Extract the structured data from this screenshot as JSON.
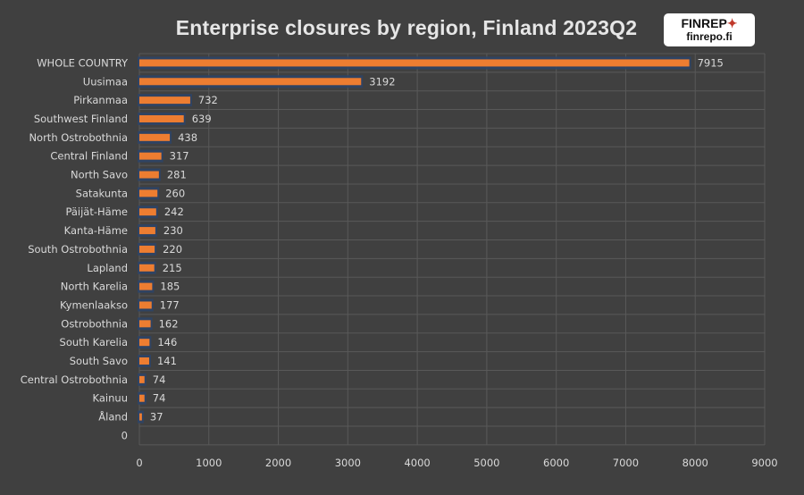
{
  "chart_data": {
    "type": "bar",
    "orientation": "horizontal",
    "title": "Enterprise closures by region, Finland 2023Q2",
    "categories": [
      "WHOLE COUNTRY",
      "Uusimaa",
      "Pirkanmaa",
      "Southwest Finland",
      "North Ostrobothnia",
      "Central Finland",
      "North Savo",
      "Satakunta",
      "Päijät-Häme",
      "Kanta-Häme",
      "South Ostrobothnia",
      "Lapland",
      "North Karelia",
      "Kymenlaakso",
      "Ostrobothnia",
      "South Karelia",
      "South Savo",
      "Central Ostrobothnia",
      "Kainuu",
      "Åland",
      "0"
    ],
    "values": [
      7915,
      3192,
      732,
      639,
      438,
      317,
      281,
      260,
      242,
      230,
      220,
      215,
      185,
      177,
      162,
      146,
      141,
      74,
      74,
      37,
      null
    ],
    "xlim": [
      0,
      9000
    ],
    "xticks": [
      0,
      1000,
      2000,
      3000,
      4000,
      5000,
      6000,
      7000,
      8000,
      9000
    ],
    "grid": true,
    "legend": "none",
    "colors": {
      "bar": "#ED7D31",
      "bar_glow": "#2E4466",
      "background": "#404040",
      "grid": "#595959",
      "text": "#d9d9d9"
    }
  },
  "logo": {
    "line1": "FINREP",
    "line2": "finrepo.fi"
  }
}
